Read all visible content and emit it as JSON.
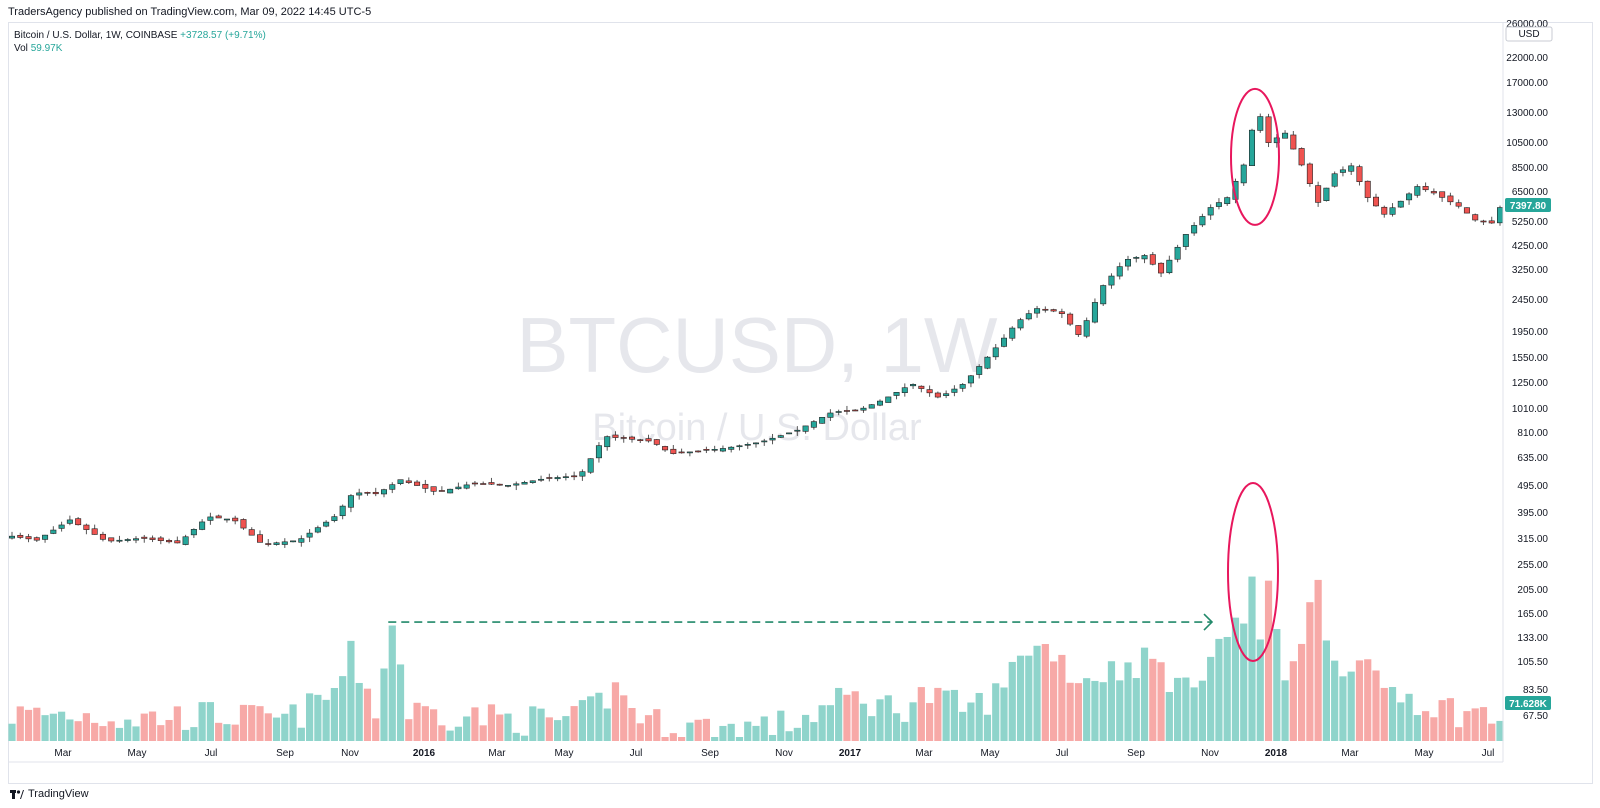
{
  "publisher": "TradersAgency published on TradingView.com, Mar 09, 2022 14:45 UTC-5",
  "legend": {
    "symbol_line": "Bitcoin / U.S. Dollar, 1W, COINBASE",
    "change": "+3728.57 (+9.71%)",
    "vol_label": "Vol",
    "vol_value": "59.97K"
  },
  "watermark": {
    "ticker": "BTCUSD, 1W",
    "name": "Bitcoin / U.S. Dollar"
  },
  "footer": {
    "brand": "TradingView",
    "logo_icon": "tradingview-logo-icon"
  },
  "colors": {
    "up": "#26a69a",
    "down": "#ef5350",
    "vol_up": "#8fd4cb",
    "vol_down": "#f7a9a7",
    "annotation": "#e8175d",
    "arrow": "#22896a"
  },
  "chart_data": {
    "type": "candlestick",
    "title": "",
    "y_scale": "log",
    "currency": "USD",
    "last_price_label": "7397.80",
    "last_volume_label": "71.628K",
    "y_ticks": [
      "26000.00",
      "22000.00",
      "17000.00",
      "13000.00",
      "10500.00",
      "8500.00",
      "6500.00",
      "5250.00",
      "4250.00",
      "3250.00",
      "2450.00",
      "1950.00",
      "1550.00",
      "1250.00",
      "1010.00",
      "810.00",
      "635.00",
      "495.00",
      "395.00",
      "315.00",
      "255.00",
      "205.00",
      "165.00",
      "133.00",
      "105.50",
      "83.50",
      "67.50"
    ],
    "x_ticks": [
      "Mar",
      "May",
      "Jul",
      "Sep",
      "Nov",
      "2016",
      "Mar",
      "May",
      "Jul",
      "Sep",
      "Nov",
      "2017",
      "Mar",
      "May",
      "Jul",
      "Sep",
      "Nov",
      "2018",
      "Mar",
      "May",
      "Jul"
    ],
    "x_ticks_bold": [
      "2016",
      "2017",
      "2018"
    ],
    "anchors": [
      [
        "2015-01-25",
        245
      ],
      [
        "2015-02-15",
        235
      ],
      [
        "2015-03-15",
        290
      ],
      [
        "2015-04-15",
        232
      ],
      [
        "2015-05-15",
        240
      ],
      [
        "2015-06-15",
        228
      ],
      [
        "2015-07-10",
        300
      ],
      [
        "2015-08-01",
        290
      ],
      [
        "2015-08-25",
        225
      ],
      [
        "2015-09-25",
        235
      ],
      [
        "2015-10-25",
        300
      ],
      [
        "2015-11-10",
        385
      ],
      [
        "2015-11-30",
        380
      ],
      [
        "2015-12-20",
        440
      ],
      [
        "2016-01-20",
        385
      ],
      [
        "2016-02-20",
        425
      ],
      [
        "2016-03-20",
        415
      ],
      [
        "2016-04-20",
        445
      ],
      [
        "2016-05-20",
        460
      ],
      [
        "2016-06-10",
        690
      ],
      [
        "2016-06-20",
        680
      ],
      [
        "2016-07-20",
        655
      ],
      [
        "2016-08-05",
        575
      ],
      [
        "2016-09-20",
        610
      ],
      [
        "2016-10-20",
        650
      ],
      [
        "2016-11-20",
        735
      ],
      [
        "2016-12-20",
        890
      ],
      [
        "2017-01-10",
        900
      ],
      [
        "2017-02-01",
        1010
      ],
      [
        "2017-02-25",
        1190
      ],
      [
        "2017-03-20",
        1030
      ],
      [
        "2017-04-10",
        1190
      ],
      [
        "2017-05-10",
        1800
      ],
      [
        "2017-05-25",
        2250
      ],
      [
        "2017-06-10",
        2600
      ],
      [
        "2017-07-01",
        2500
      ],
      [
        "2017-07-17",
        1950
      ],
      [
        "2017-08-05",
        3250
      ],
      [
        "2017-08-25",
        4300
      ],
      [
        "2017-09-10",
        4500
      ],
      [
        "2017-09-24",
        3750
      ],
      [
        "2017-10-15",
        5600
      ],
      [
        "2017-11-05",
        7400
      ],
      [
        "2017-11-19",
        8200
      ],
      [
        "2017-12-03",
        11500
      ],
      [
        "2017-12-10",
        16500
      ],
      [
        "2017-12-17",
        19000
      ],
      [
        "2017-12-24",
        14500
      ],
      [
        "2018-01-07",
        16000
      ],
      [
        "2018-01-21",
        11500
      ],
      [
        "2018-02-04",
        7800
      ],
      [
        "2018-02-18",
        10500
      ],
      [
        "2018-03-04",
        11400
      ],
      [
        "2018-03-18",
        8200
      ],
      [
        "2018-04-01",
        6900
      ],
      [
        "2018-04-15",
        7900
      ],
      [
        "2018-04-29",
        9200
      ],
      [
        "2018-05-13",
        8600
      ],
      [
        "2018-06-03",
        7500
      ],
      [
        "2018-06-17",
        6500
      ],
      [
        "2018-07-01",
        6300
      ],
      [
        "2018-07-08",
        7397.8
      ]
    ],
    "volume_anchors": [
      [
        "2015-01-25",
        85
      ],
      [
        "2015-03-15",
        85
      ],
      [
        "2015-05-15",
        82
      ],
      [
        "2015-07-15",
        85
      ],
      [
        "2015-09-15",
        80
      ],
      [
        "2015-10-25",
        105
      ],
      [
        "2015-11-08",
        148
      ],
      [
        "2015-11-30",
        88
      ],
      [
        "2015-12-13",
        205
      ],
      [
        "2015-12-27",
        88
      ],
      [
        "2016-03-15",
        82
      ],
      [
        "2016-05-15",
        80
      ],
      [
        "2016-06-19",
        108
      ],
      [
        "2016-07-15",
        80
      ],
      [
        "2016-09-15",
        74
      ],
      [
        "2016-11-15",
        78
      ],
      [
        "2017-01-03",
        100
      ],
      [
        "2017-02-15",
        90
      ],
      [
        "2017-03-05",
        102
      ],
      [
        "2017-04-15",
        90
      ],
      [
        "2017-05-15",
        108
      ],
      [
        "2017-05-28",
        160
      ],
      [
        "2017-06-25",
        158
      ],
      [
        "2017-07-15",
        118
      ],
      [
        "2017-08-20",
        132
      ],
      [
        "2017-09-15",
        145
      ],
      [
        "2017-10-15",
        105
      ],
      [
        "2017-11-05",
        155
      ],
      [
        "2017-11-19",
        180
      ],
      [
        "2017-12-03",
        205
      ],
      [
        "2017-12-10",
        325
      ],
      [
        "2017-12-17",
        170
      ],
      [
        "2017-12-24",
        265
      ],
      [
        "2018-01-07",
        125
      ],
      [
        "2018-01-21",
        185
      ],
      [
        "2018-02-04",
        280
      ],
      [
        "2018-02-18",
        140
      ],
      [
        "2018-03-04",
        145
      ],
      [
        "2018-03-25",
        115
      ],
      [
        "2018-05-15",
        92
      ],
      [
        "2018-07-08",
        82
      ]
    ]
  }
}
